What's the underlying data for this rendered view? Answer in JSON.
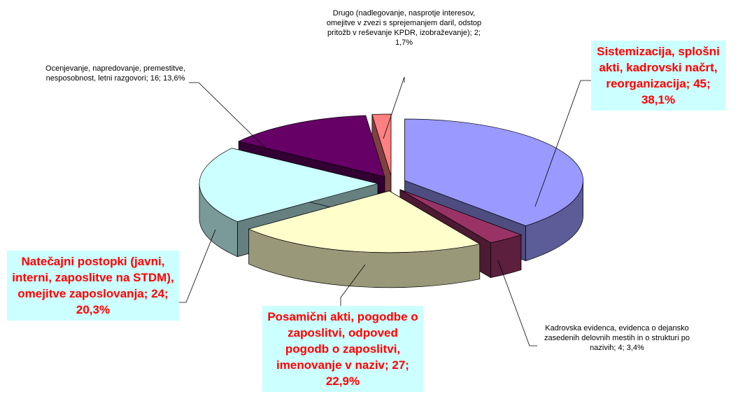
{
  "chart_data": {
    "type": "pie3d",
    "labels": [
      "Sistemizacija, splošni akti, kadrovski načrt, reorganizacija; 45; 38,1%",
      "Kadrovska evidenca, evidenca o dejansko zasedenih delovnih mestih in o strukturi po nazivih; 4; 3,4%",
      "Posamični akti, pogodbe o zaposlitvi, odpoved pogodb o zaposlitvi, imenovanje v naziv; 27; 22,9%",
      "Natečajni postopki (javni, interni, zaposlitve na STDM), omejitve zaposlovanja; 24; 20,3%",
      "Ocenjevanje, napredovanje, premestitve, nesposobnost, letni razgovori; 16; 13,6%",
      "Drugo (nadlegovanje, nasprotje interesov, omejitve v zvezi s sprejemanjem daril, odstop pritožb v reševanje KPDR, izobraževanje); 2; 1,7%"
    ],
    "values": [
      45,
      4,
      27,
      24,
      16,
      2
    ],
    "colors": [
      "#9999ff",
      "#993366",
      "#ffffcc",
      "#ccffff",
      "#660066",
      "#ff8080"
    ]
  }
}
